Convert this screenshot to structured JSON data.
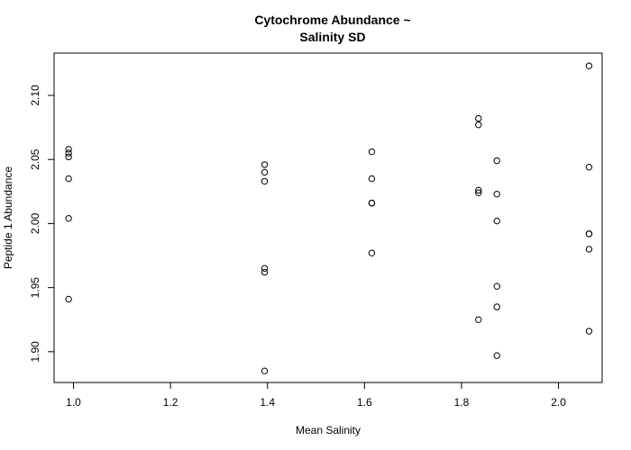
{
  "chart_data": {
    "type": "scatter",
    "title_lines": [
      "Cytochrome Abundance ~",
      "Salinity SD"
    ],
    "xlabel": "Mean Salinity",
    "ylabel": "Peptide 1 Abundance",
    "xlim": [
      0.96,
      2.09
    ],
    "ylim": [
      1.876,
      2.133
    ],
    "x_ticks": [
      1.0,
      1.2,
      1.4,
      1.6,
      1.8,
      2.0
    ],
    "x_tick_labels": [
      "1.0",
      "1.2",
      "1.4",
      "1.6",
      "1.8",
      "2.0"
    ],
    "y_ticks": [
      1.9,
      1.95,
      2.0,
      2.05,
      2.1
    ],
    "y_tick_labels": [
      "1.90",
      "1.95",
      "2.00",
      "2.05",
      "2.10"
    ],
    "grid": false,
    "marker": "open-circle",
    "marker_color": "#000000",
    "points": [
      {
        "x": 0.99,
        "y": 2.058
      },
      {
        "x": 0.99,
        "y": 2.055
      },
      {
        "x": 0.99,
        "y": 2.052
      },
      {
        "x": 0.99,
        "y": 2.035
      },
      {
        "x": 0.99,
        "y": 2.004
      },
      {
        "x": 0.99,
        "y": 1.941
      },
      {
        "x": 1.394,
        "y": 2.046
      },
      {
        "x": 1.394,
        "y": 2.04
      },
      {
        "x": 1.394,
        "y": 2.033
      },
      {
        "x": 1.394,
        "y": 1.965
      },
      {
        "x": 1.394,
        "y": 1.962
      },
      {
        "x": 1.394,
        "y": 1.885
      },
      {
        "x": 1.615,
        "y": 2.056
      },
      {
        "x": 1.615,
        "y": 2.035
      },
      {
        "x": 1.615,
        "y": 2.016
      },
      {
        "x": 1.615,
        "y": 2.016
      },
      {
        "x": 1.615,
        "y": 1.977
      },
      {
        "x": 1.835,
        "y": 2.082
      },
      {
        "x": 1.835,
        "y": 2.077
      },
      {
        "x": 1.835,
        "y": 2.026
      },
      {
        "x": 1.835,
        "y": 2.024
      },
      {
        "x": 1.835,
        "y": 1.925
      },
      {
        "x": 1.873,
        "y": 2.049
      },
      {
        "x": 1.873,
        "y": 2.023
      },
      {
        "x": 1.873,
        "y": 2.002
      },
      {
        "x": 1.873,
        "y": 1.951
      },
      {
        "x": 1.873,
        "y": 1.935
      },
      {
        "x": 1.873,
        "y": 1.897
      },
      {
        "x": 2.063,
        "y": 2.123
      },
      {
        "x": 2.063,
        "y": 2.044
      },
      {
        "x": 2.063,
        "y": 1.992
      },
      {
        "x": 2.063,
        "y": 1.992
      },
      {
        "x": 2.063,
        "y": 1.98
      },
      {
        "x": 2.063,
        "y": 1.916
      }
    ]
  }
}
